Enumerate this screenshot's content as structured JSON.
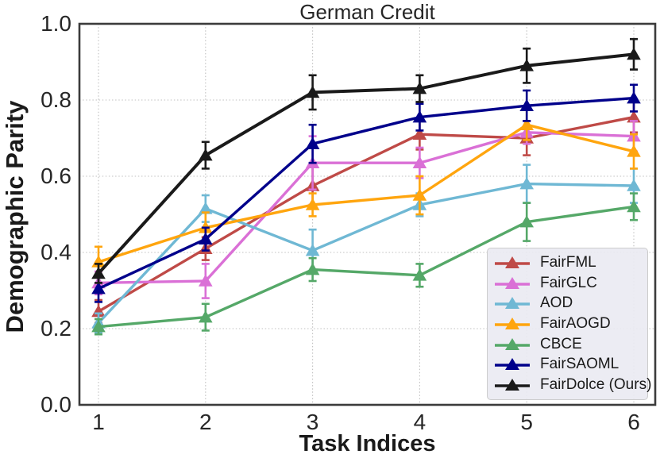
{
  "title": "German Credit",
  "axes": {
    "x_label": "Task Indices",
    "y_label": "Demographic Parity",
    "x_ticks": [
      "1",
      "2",
      "3",
      "4",
      "5",
      "6"
    ],
    "y_ticks": [
      "0.0",
      "0.2",
      "0.4",
      "0.6",
      "0.8",
      "1.0"
    ]
  },
  "colors": {
    "spine": "#3b3b3b",
    "gridline": "#c0c0c0",
    "text": "#262626",
    "legend_bg": "#eaeaf2"
  },
  "chart_data": {
    "type": "line",
    "title": "German Credit",
    "xlabel": "Task Indices",
    "ylabel": "Demographic Parity",
    "x": [
      1,
      2,
      3,
      4,
      5,
      6
    ],
    "xlim": [
      0.82,
      6.2
    ],
    "ylim": [
      0.0,
      1.0
    ],
    "y_tick_step": 0.2,
    "grid": true,
    "marker": "triangle-up",
    "error_bars": true,
    "legend_position": "lower right",
    "series": [
      {
        "name": "FairFML",
        "color": "#bf4a47",
        "values": [
          0.245,
          0.41,
          0.575,
          0.71,
          0.7,
          0.755
        ],
        "errors": [
          0.03,
          0.03,
          0.05,
          0.04,
          0.045,
          0.04
        ]
      },
      {
        "name": "FairGLC",
        "color": "#da70d6",
        "values": [
          0.32,
          0.325,
          0.635,
          0.635,
          0.715,
          0.705
        ],
        "errors": [
          0.03,
          0.045,
          0.07,
          0.04,
          0.03,
          0.04
        ]
      },
      {
        "name": "AOD",
        "color": "#6fb8d4",
        "values": [
          0.215,
          0.515,
          0.405,
          0.525,
          0.58,
          0.575
        ],
        "errors": [
          0.025,
          0.035,
          0.055,
          0.03,
          0.05,
          0.045
        ]
      },
      {
        "name": "FairAOGD",
        "color": "#ffa50e",
        "values": [
          0.375,
          0.465,
          0.525,
          0.55,
          0.735,
          0.665
        ],
        "errors": [
          0.04,
          0.04,
          0.03,
          0.05,
          0.04,
          0.045
        ]
      },
      {
        "name": "CBCE",
        "color": "#55a868",
        "values": [
          0.205,
          0.23,
          0.355,
          0.34,
          0.48,
          0.52
        ],
        "errors": [
          0.02,
          0.035,
          0.03,
          0.03,
          0.05,
          0.035
        ]
      },
      {
        "name": "FairSAOML",
        "color": "#00008b",
        "values": [
          0.305,
          0.435,
          0.685,
          0.755,
          0.785,
          0.805
        ],
        "errors": [
          0.035,
          0.03,
          0.05,
          0.035,
          0.04,
          0.035
        ]
      },
      {
        "name": "FairDolce (Ours)",
        "color": "#1a1a1a",
        "values": [
          0.345,
          0.655,
          0.82,
          0.83,
          0.89,
          0.92
        ],
        "errors": [
          0.025,
          0.035,
          0.045,
          0.035,
          0.045,
          0.04
        ]
      }
    ]
  }
}
